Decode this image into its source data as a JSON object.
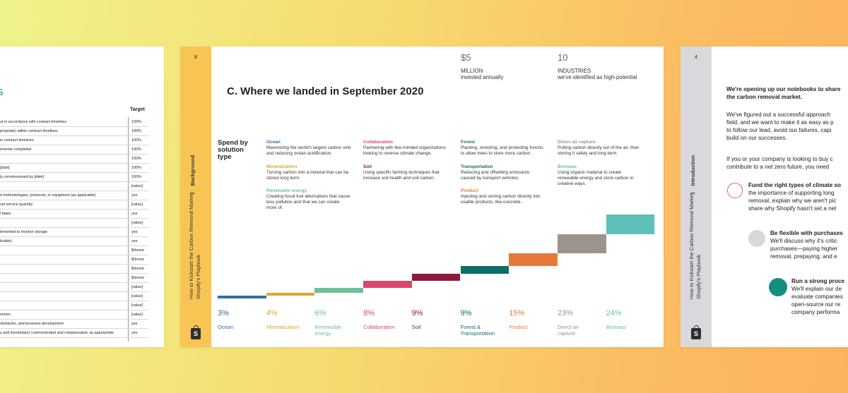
{
  "left_page": {
    "heading": "s",
    "column_header": "Target",
    "rows": [
      {
        "text": "ut in accordance with contract timelines",
        "value": "100%"
      },
      {
        "text": "propriate) within contract timelines",
        "value": "100%"
      },
      {
        "text": "in contract timelines",
        "value": "100%"
      },
      {
        "text": "ements completed",
        "value": "100%"
      },
      {
        "text": "",
        "value": "100%"
      },
      {
        "text": "[date]",
        "value": "100%"
      },
      {
        "text": "ly commissioned by [date]",
        "value": "100%"
      },
      {
        "text": "",
        "value": "[value]"
      },
      {
        "text": "d methodologies, protocols, or equipment (as applicable)",
        "value": "yes"
      },
      {
        "text": "uel service quantity",
        "value": "[value]"
      },
      {
        "text": "l basis",
        "value": "yes"
      },
      {
        "text": "",
        "value": "[value]"
      },
      {
        "text": "lemented to monitor storage",
        "value": "yes"
      },
      {
        "text": "licable)",
        "value": "yes"
      },
      {
        "text": "",
        "value": "$/tonne"
      },
      {
        "text": "",
        "value": "$/tonne"
      },
      {
        "text": "",
        "value": "$/tonne"
      },
      {
        "text": "",
        "value": "$/tonne"
      },
      {
        "text": "",
        "value": "[value]"
      },
      {
        "text": "",
        "value": "[value]"
      },
      {
        "text": "",
        "value": "[value]"
      },
      {
        "text": "onnes",
        "value": "[value]"
      },
      {
        "text": "obstacles, and business development",
        "value": "yes"
      },
      {
        "text": "y and involuntary) communicated and compensated, as appropriate",
        "value": "yes"
      }
    ]
  },
  "mid_page": {
    "page_number": "8",
    "section_number": "2",
    "section_name": "Background",
    "doc_title_line1": "How to Kickstart the Carbon Removal Market:",
    "doc_title_line2": "Shopify's Playbook",
    "logo_letter": "S",
    "stats": [
      {
        "value": "$5",
        "label1": "MILLION",
        "label2": "invested annually"
      },
      {
        "value": "10",
        "label1": "INDUSTRIES",
        "label2": "we've identified as high-potential"
      }
    ],
    "title": "C. Where we landed  in September 2020",
    "spend_label": [
      "Spend by",
      "solution",
      "type"
    ],
    "categories": [
      {
        "title": "Ocean",
        "color": "#2f6fa8",
        "desc": [
          "Maximizing the world's largest carbon sink",
          "and reducing ocean acidification."
        ]
      },
      {
        "title": "Mineralization",
        "color": "#e0a628",
        "desc": [
          "Turning carbon into a mineral that can be",
          "stored long term."
        ]
      },
      {
        "title": "Renewable energy",
        "color": "#6cc19b",
        "desc": [
          "Creating fossil fuel alternatives that cause",
          "less pollution and that we can create",
          "more of."
        ]
      },
      {
        "title": "Collaboration",
        "color": "#d9466e",
        "desc": [
          "Partnering with like-minded organizations",
          "looking to reverse climate change."
        ]
      },
      {
        "title": "Soil",
        "color": "#8b1a3a",
        "desc": [
          "Using specific farming techniques that",
          "increase soil health and soil carbon."
        ]
      },
      {
        "title": "Forest",
        "color": "#0f6e6a",
        "desc": [
          "Planting, restoring, and protecting forests",
          "to allow trees to store more carbon."
        ]
      },
      {
        "title": "Transportation",
        "color": "#0f6e6a",
        "desc": [
          "Reducing and offsetting emissions",
          "caused by transport vehicles."
        ]
      },
      {
        "title": "Product",
        "color": "#e8783a",
        "desc": [
          "Injecting and storing carbon directly into",
          "usable products, like concrete."
        ]
      },
      {
        "title": "Direct air capture",
        "color": "#9c948c",
        "desc": [
          "Pulling carbon directly out of the air, then",
          "storing it safely and long term."
        ]
      },
      {
        "title": "Biomass",
        "color": "#5fbfba",
        "desc": [
          "Using organic material to create",
          "renewable energy and store carbon in",
          "creative ways."
        ]
      }
    ]
  },
  "chart_data": {
    "type": "bar",
    "categories": [
      "Ocean",
      "Mineralization",
      "Renewable energy",
      "Collaboration",
      "Soil",
      "Forest & Transportation",
      "Product",
      "Direct air capture",
      "Biomass"
    ],
    "values": [
      3,
      4,
      6,
      8,
      9,
      9,
      15,
      23,
      24
    ],
    "value_labels": [
      "3%",
      "4%",
      "6%",
      "8%",
      "9%",
      "9%",
      "15%",
      "23%",
      "24%"
    ],
    "bottom_labels": [
      [
        "Ocean"
      ],
      [
        "Mineralization"
      ],
      [
        "Renewable",
        "energy"
      ],
      [
        "Collaboration"
      ],
      [
        "Soil"
      ],
      [
        "Forest &",
        "Transportation"
      ],
      [
        "Product"
      ],
      [
        "Direct air",
        "capture"
      ],
      [
        "Biomass"
      ]
    ],
    "colors": [
      "#2f6fa8",
      "#e0a628",
      "#6cc19b",
      "#d9466e",
      "#8b1a3a",
      "#0f6e6a",
      "#e8783a",
      "#9c948c",
      "#5fbfba"
    ],
    "style": "waterfall"
  },
  "right_page": {
    "page_number": "4",
    "section_number": "1",
    "section_name": "Introduction",
    "doc_title_line1": "How to Kickstart the Carbon Removal Market:",
    "doc_title_line2": "Shopify's Playbook",
    "logo_letter": "S",
    "intro_bold": [
      "We're opening up our notebooks to share",
      "the carbon removal market."
    ],
    "para1": [
      "We've figured out a successful approach",
      "field, and we want to make it as easy as p",
      "to follow our lead, avoid our failures, capi",
      "build on our successes."
    ],
    "para2": [
      "If you or your company is looking to buy c",
      "contribute to a net zero future, you need"
    ],
    "items": [
      {
        "title": "Fund the right types of climate so",
        "lines": [
          "the importance of supporting long",
          "removal, explain why we aren't pic",
          "share why Shopify hasn't set a net"
        ]
      },
      {
        "title": "Be flexible with purchases",
        "lines": [
          "We'll discuss why it's critic",
          "purchases—paying higher",
          "removal, prepaying, and e"
        ]
      },
      {
        "title": "Run a strong proce",
        "lines": [
          "We'll explain our de",
          "evaluate companies",
          "open-source our re",
          "company performa"
        ]
      }
    ]
  }
}
